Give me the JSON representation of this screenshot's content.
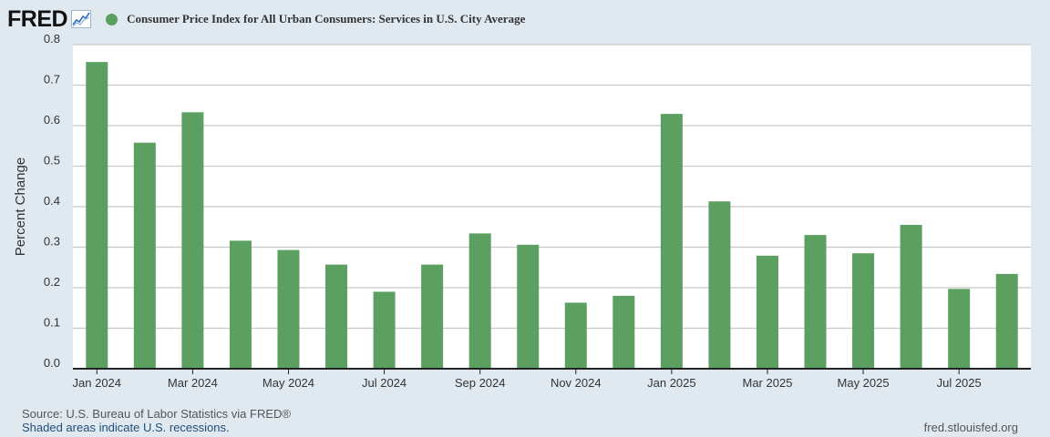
{
  "header": {
    "logo_text": "FRED",
    "logo_icon": "line-graph-icon",
    "legend_label": "Consumer Price Index for All Urban Consumers: Services in U.S. City Average",
    "legend_color": "#5ba060"
  },
  "footer": {
    "source": "Source: U.S. Bureau of Labor Statistics via FRED®",
    "shaded_note": "Shaded areas indicate U.S. recessions.",
    "site": "fred.stlouisfed.org"
  },
  "colors": {
    "background": "#e1e9f0",
    "plot_background": "#ffffff",
    "bar": "#5ba060",
    "grid": "#c8c8c8"
  },
  "chart_data": {
    "type": "bar",
    "title": "Consumer Price Index for All Urban Consumers: Services in U.S. City Average",
    "xlabel": "",
    "ylabel": "Percent Change",
    "ylim": [
      0,
      0.8
    ],
    "yticks": [
      "0.0",
      "0.1",
      "0.2",
      "0.3",
      "0.4",
      "0.5",
      "0.6",
      "0.7",
      "0.8"
    ],
    "grid": true,
    "categories": [
      "Jan 2024",
      "Feb 2024",
      "Mar 2024",
      "Apr 2024",
      "May 2024",
      "Jun 2024",
      "Jul 2024",
      "Aug 2024",
      "Sep 2024",
      "Oct 2024",
      "Nov 2024",
      "Dec 2024",
      "Jan 2025",
      "Feb 2025",
      "Mar 2025",
      "Apr 2025",
      "May 2025",
      "Jun 2025",
      "Jul 2025",
      "Aug 2025"
    ],
    "values": [
      0.757,
      0.558,
      0.633,
      0.316,
      0.293,
      0.257,
      0.19,
      0.257,
      0.334,
      0.306,
      0.163,
      0.18,
      0.629,
      0.413,
      0.279,
      0.33,
      0.285,
      0.355,
      0.197,
      0.234
    ],
    "xtick_labels": [
      {
        "index": 0,
        "label": "Jan 2024"
      },
      {
        "index": 2,
        "label": "Mar 2024"
      },
      {
        "index": 4,
        "label": "May 2024"
      },
      {
        "index": 6,
        "label": "Jul 2024"
      },
      {
        "index": 8,
        "label": "Sep 2024"
      },
      {
        "index": 10,
        "label": "Nov 2024"
      },
      {
        "index": 12,
        "label": "Jan 2025"
      },
      {
        "index": 14,
        "label": "Mar 2025"
      },
      {
        "index": 16,
        "label": "May 2025"
      },
      {
        "index": 18,
        "label": "Jul 2025"
      }
    ]
  }
}
